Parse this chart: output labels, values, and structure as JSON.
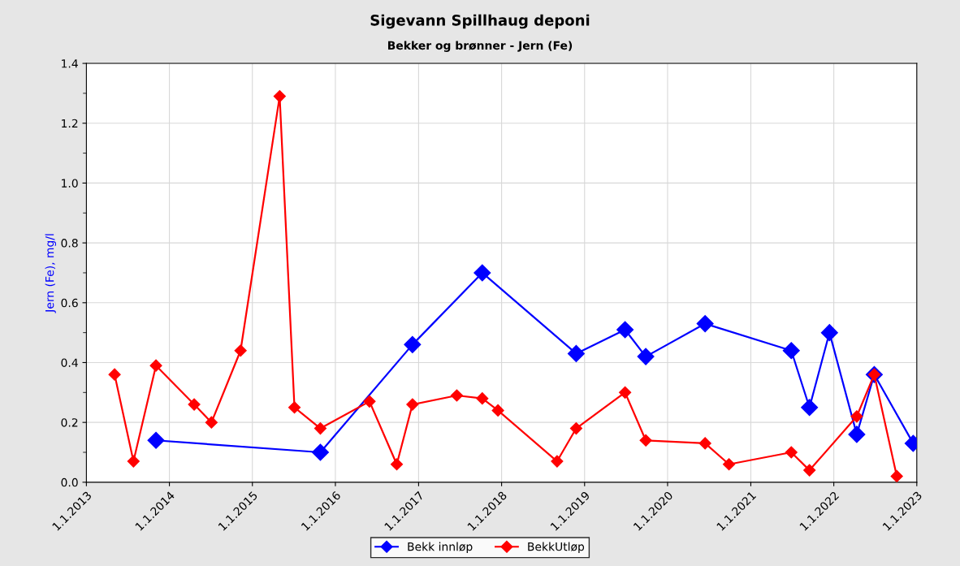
{
  "chart_data": {
    "type": "line",
    "title": "Sigevann Spillhaug deponi",
    "subtitle": "Bekker og brønner - Jern (Fe)",
    "ylabel": "Jern (Fe), mg/l",
    "xlim": [
      "2013-01-01",
      "2023-01-01"
    ],
    "xticks": [
      {
        "value": "2013-01-01",
        "label": "1.1.2013"
      },
      {
        "value": "2014-01-01",
        "label": "1.1.2014"
      },
      {
        "value": "2015-01-01",
        "label": "1.1.2015"
      },
      {
        "value": "2016-01-01",
        "label": "1.1.2016"
      },
      {
        "value": "2017-01-01",
        "label": "1.1.2017"
      },
      {
        "value": "2018-01-01",
        "label": "1.1.2018"
      },
      {
        "value": "2019-01-01",
        "label": "1.1.2019"
      },
      {
        "value": "2020-01-01",
        "label": "1.1.2020"
      },
      {
        "value": "2021-01-01",
        "label": "1.1.2021"
      },
      {
        "value": "2022-01-01",
        "label": "1.1.2022"
      },
      {
        "value": "2023-01-01",
        "label": "1.1.2023"
      }
    ],
    "ylim": [
      0,
      1.4
    ],
    "yticks": [
      {
        "value": 0,
        "label": "0.0"
      },
      {
        "value": 0.1,
        "label": null
      },
      {
        "value": 0.2,
        "label": "0.2"
      },
      {
        "value": 0.3,
        "label": null
      },
      {
        "value": 0.4,
        "label": "0.4"
      },
      {
        "value": 0.5,
        "label": null
      },
      {
        "value": 0.6,
        "label": "0.6"
      },
      {
        "value": 0.7,
        "label": null
      },
      {
        "value": 0.8,
        "label": "0.8"
      },
      {
        "value": 0.9,
        "label": null
      },
      {
        "value": 1.0,
        "label": "1.0"
      },
      {
        "value": 1.1,
        "label": null
      },
      {
        "value": 1.2,
        "label": "1.2"
      },
      {
        "value": 1.3,
        "label": null
      },
      {
        "value": 1.4,
        "label": "1.4"
      }
    ],
    "grid": true,
    "legend": "bottom",
    "marker": "diamond",
    "line_style": "solid",
    "series": [
      {
        "name": "Bekk innløp",
        "color": "#0000ff",
        "x": [
          "2013-11-03",
          "2015-10-27",
          "2016-12-05",
          "2017-10-08",
          "2018-11-25",
          "2019-06-28",
          "2019-09-27",
          "2020-06-14",
          "2021-06-28",
          "2021-09-16",
          "2021-12-13",
          "2022-04-12",
          "2022-06-28",
          "2022-12-16"
        ],
        "values": [
          0.14,
          0.1,
          0.46,
          0.7,
          0.43,
          0.51,
          0.42,
          0.53,
          0.44,
          0.25,
          0.5,
          0.16,
          0.36,
          0.13
        ]
      },
      {
        "name": "BekkUtløp",
        "color": "#ff0000",
        "x": [
          "2013-05-05",
          "2013-07-27",
          "2013-11-03",
          "2014-04-20",
          "2014-07-05",
          "2014-11-10",
          "2015-05-01",
          "2015-07-05",
          "2015-10-27",
          "2016-05-30",
          "2016-09-27",
          "2016-12-05",
          "2017-06-18",
          "2017-10-08",
          "2017-12-16",
          "2018-09-02",
          "2018-11-25",
          "2019-06-28",
          "2019-09-27",
          "2020-06-14",
          "2020-09-27",
          "2021-06-28",
          "2021-09-16",
          "2022-04-12",
          "2022-06-28",
          "2022-10-05"
        ],
        "values": [
          0.36,
          0.07,
          0.39,
          0.26,
          0.2,
          0.44,
          1.29,
          0.25,
          0.18,
          0.27,
          0.06,
          0.26,
          0.29,
          0.28,
          0.24,
          0.07,
          0.18,
          0.3,
          0.14,
          0.13,
          0.06,
          0.1,
          0.04,
          0.22,
          0.36,
          0.02
        ]
      }
    ]
  }
}
